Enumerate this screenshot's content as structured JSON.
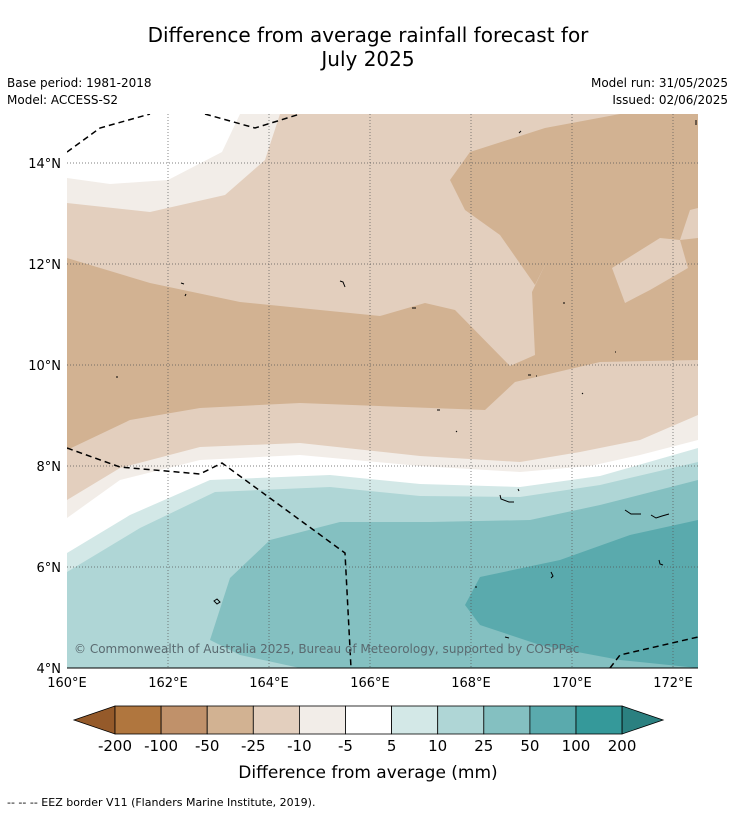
{
  "title_line1": "Difference from average rainfall forecast for",
  "title_line2": "July 2025",
  "meta": {
    "base_period": "Base period: 1981-2018",
    "model": "Model: ACCESS-S2",
    "model_run": "Model run: 31/05/2025",
    "issued": "Issued: 02/06/2025"
  },
  "map": {
    "lon_labels": [
      "160°E",
      "162°E",
      "164°E",
      "166°E",
      "168°E",
      "170°E",
      "172°E"
    ],
    "lat_labels": [
      "14°N",
      "12°N",
      "10°N",
      "8°N",
      "6°N",
      "4°N"
    ],
    "lon_range": [
      160,
      172.5
    ],
    "lat_range": [
      4,
      15
    ],
    "gridlines": true,
    "copyright": "© Commonwealth of Australia 2025, Bureau of Meteorology, supported by COSPPac"
  },
  "colorbar": {
    "labels": [
      "-200",
      "-100",
      "-50",
      "-25",
      "-10",
      "-5",
      "5",
      "10",
      "25",
      "50",
      "100",
      "200"
    ],
    "colors": [
      "#955a2a",
      "#b0763e",
      "#c0916a",
      "#d2b292",
      "#e3cfbe",
      "#f2ede8",
      "#ffffff",
      "#d3e8e7",
      "#afd6d6",
      "#84c0c1",
      "#5aaaad",
      "#35999a",
      "#2b8080"
    ],
    "title": "Difference from average (mm)"
  },
  "legend_note": "--  --  -- EEZ border V11 (Flanders Marine Institute, 2019)."
}
